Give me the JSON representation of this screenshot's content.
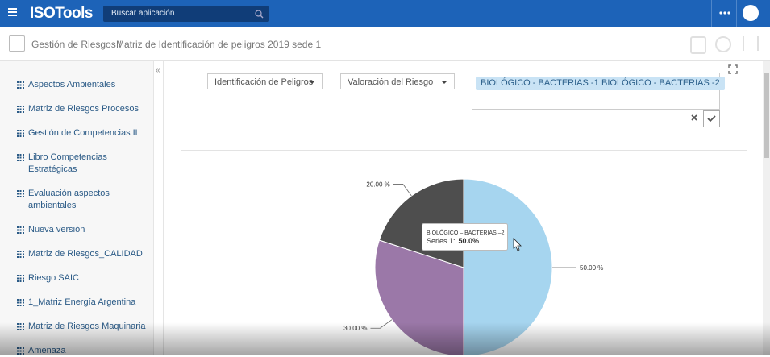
{
  "header": {
    "logo": "ISOTools",
    "search_placeholder": "Buscar aplicación"
  },
  "breadcrumb": {
    "parent": "Gestión de Riesgos /",
    "current": "Matriz de Identificación de peligros 2019 sede 1"
  },
  "sidebar": {
    "items": [
      "Aspectos Ambientales",
      "Matriz de Riesgos Procesos",
      "Gestión de Competencias IL",
      "Libro Competencias Estratégicas",
      "Evaluación aspectos ambientales",
      "Nueva versión",
      "Matriz de Riesgos_CALIDAD",
      "Riesgo SAIC",
      "1_Matriz Energía Argentina",
      "Matriz de Riesgos Maquinaria",
      "Amenaza"
    ]
  },
  "filters": {
    "dropdowns": [
      "Identificación de Peligros",
      "Valoración del Riesgo"
    ],
    "tags": [
      "BIOLÓGICO - BACTERIAS -1",
      "BIOLÓGICO - BACTERIAS -2"
    ]
  },
  "chart_data": {
    "type": "pie",
    "categories": [
      "BIOLÓGICO – BACTERIAS –2",
      null,
      null
    ],
    "values": [
      50,
      30,
      20
    ],
    "value_labels": [
      "50.00 %",
      "30.00 %",
      "20.00 %"
    ],
    "colors": [
      "#a6d5ef",
      "#9b78a8",
      "#4e4e4e"
    ],
    "tooltip": {
      "series": "Series 1:",
      "value_label": "50.0%"
    }
  }
}
